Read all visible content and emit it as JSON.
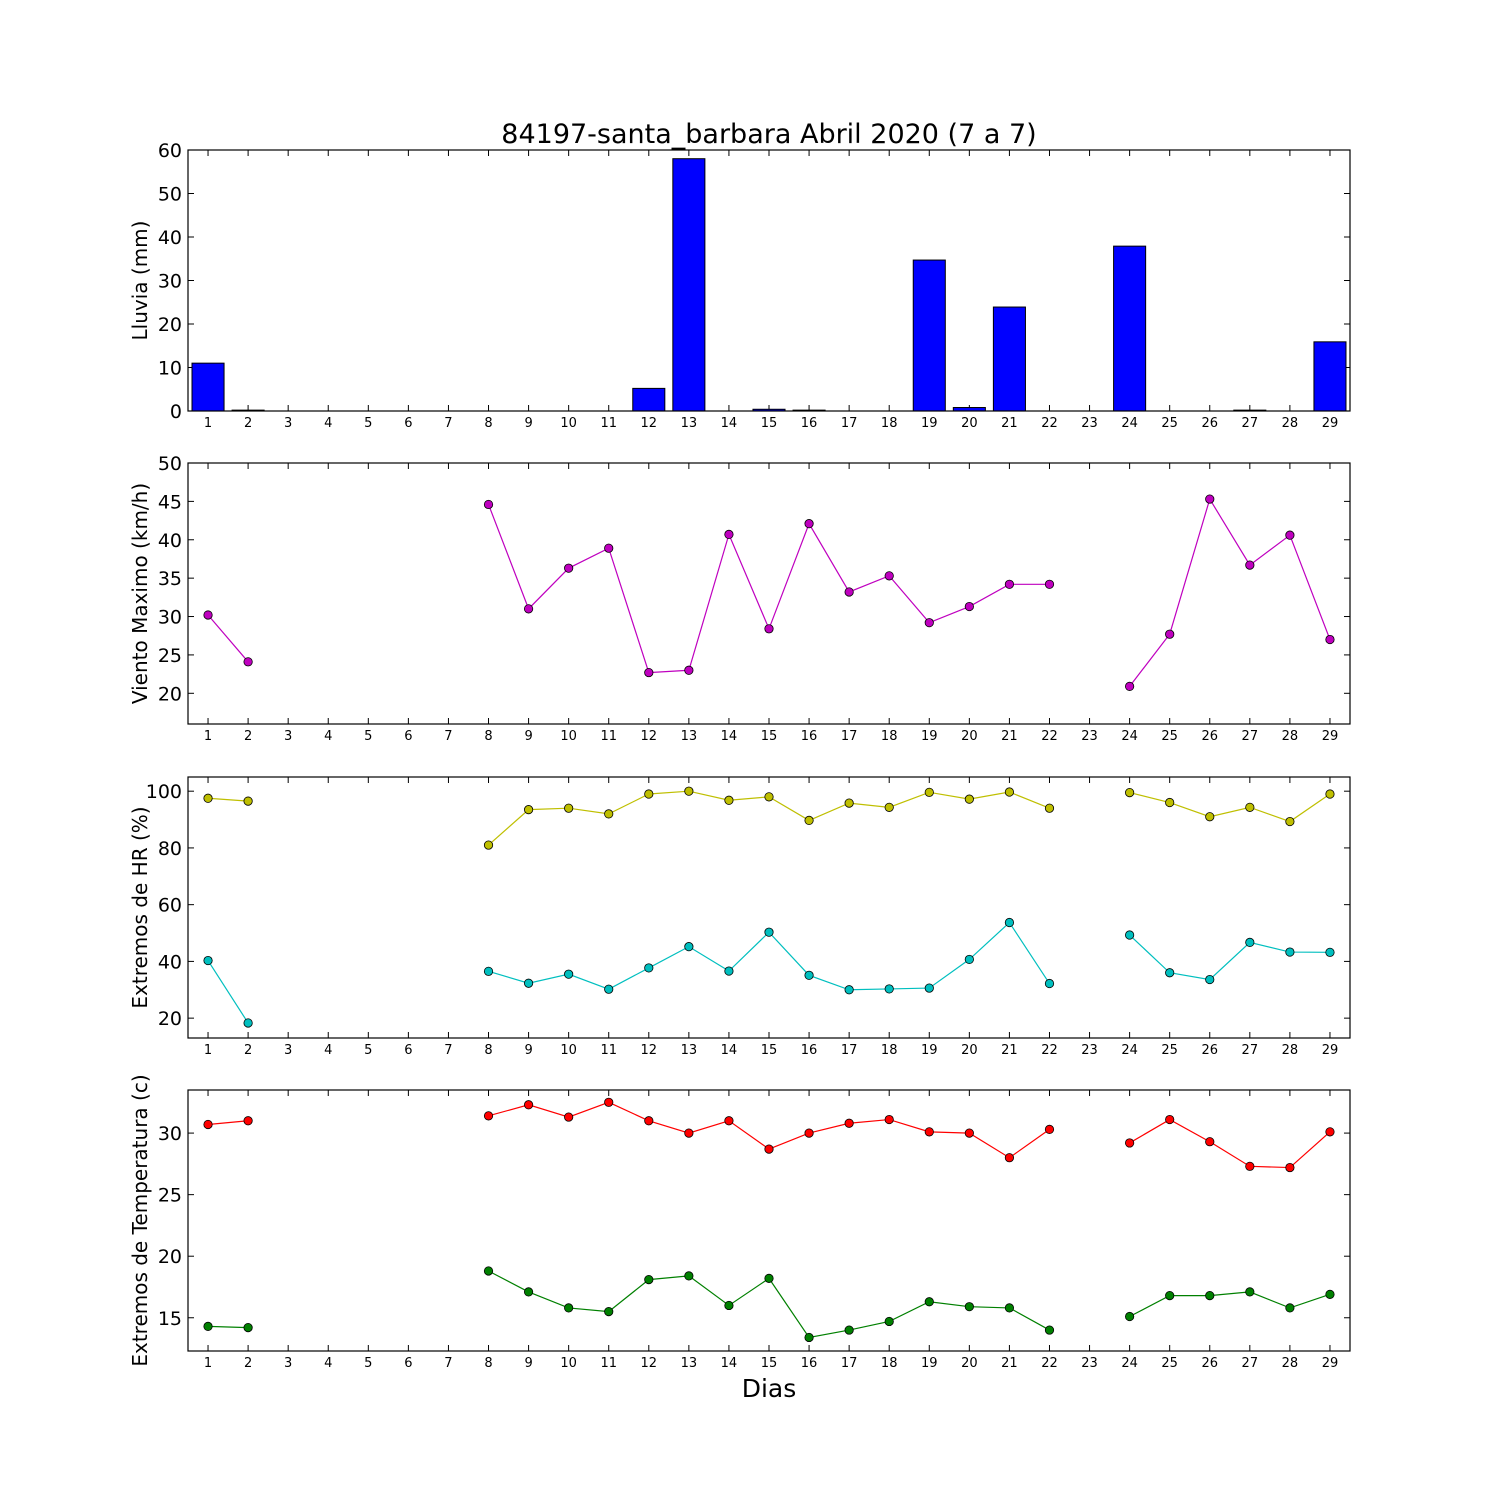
{
  "figure": {
    "title": "84197-santa_barbara Abril 2020  (7 a 7)",
    "xlabel": "Dias"
  },
  "chart_data": [
    {
      "type": "bar",
      "ylabel": "Lluvia (mm)",
      "x": [
        1,
        2,
        3,
        4,
        5,
        6,
        7,
        8,
        9,
        10,
        11,
        12,
        13,
        14,
        15,
        16,
        17,
        18,
        19,
        20,
        21,
        22,
        23,
        24,
        25,
        26,
        27,
        28,
        29
      ],
      "xlim": [
        0.5,
        29.5
      ],
      "ylim": [
        0,
        60
      ],
      "yticks": [
        0,
        10,
        20,
        30,
        40,
        50,
        60
      ],
      "bar_color": "#0000ff",
      "values": [
        11.0,
        0.2,
        0,
        0,
        0,
        0,
        0,
        0,
        0,
        0,
        0,
        5.2,
        58.0,
        0,
        0.4,
        0.2,
        0,
        0,
        34.7,
        0.8,
        23.9,
        0,
        0,
        37.9,
        0,
        0,
        0.2,
        0,
        15.9
      ]
    },
    {
      "type": "line",
      "ylabel": "Viento Maximo (km/h)",
      "x": [
        1,
        2,
        3,
        4,
        5,
        6,
        7,
        8,
        9,
        10,
        11,
        12,
        13,
        14,
        15,
        16,
        17,
        18,
        19,
        20,
        21,
        22,
        23,
        24,
        25,
        26,
        27,
        28,
        29
      ],
      "xlim": [
        0.5,
        29.5
      ],
      "ylim": [
        16,
        50
      ],
      "yticks": [
        20,
        25,
        30,
        35,
        40,
        45,
        50
      ],
      "series": [
        {
          "color": "#bf00bf",
          "values": [
            30.2,
            24.1,
            null,
            null,
            null,
            null,
            null,
            44.6,
            31.0,
            36.3,
            38.9,
            22.7,
            23.0,
            40.7,
            28.4,
            42.1,
            33.2,
            35.3,
            29.2,
            31.3,
            34.2,
            34.2,
            null,
            20.9,
            27.7,
            45.3,
            36.7,
            40.6,
            27.0
          ]
        }
      ]
    },
    {
      "type": "line",
      "ylabel": "Extremos de HR (%)",
      "x": [
        1,
        2,
        3,
        4,
        5,
        6,
        7,
        8,
        9,
        10,
        11,
        12,
        13,
        14,
        15,
        16,
        17,
        18,
        19,
        20,
        21,
        22,
        23,
        24,
        25,
        26,
        27,
        28,
        29
      ],
      "xlim": [
        0.5,
        29.5
      ],
      "ylim": [
        13,
        105
      ],
      "yticks": [
        20,
        40,
        60,
        80,
        100
      ],
      "series": [
        {
          "color": "#bfbf00",
          "values": [
            97.5,
            96.5,
            null,
            null,
            null,
            null,
            null,
            81.0,
            93.5,
            94.0,
            92.0,
            99.0,
            100.0,
            96.8,
            98.0,
            89.7,
            95.8,
            94.3,
            99.6,
            97.2,
            99.7,
            94.0,
            null,
            99.5,
            96.0,
            91.0,
            94.3,
            89.3,
            99.0
          ]
        },
        {
          "color": "#00bfbf",
          "values": [
            40.3,
            18.3,
            null,
            null,
            null,
            null,
            null,
            36.5,
            32.3,
            35.5,
            30.2,
            37.7,
            45.2,
            36.6,
            50.3,
            35.1,
            30.0,
            30.3,
            30.6,
            40.7,
            53.7,
            32.2,
            null,
            49.3,
            36.0,
            33.6,
            46.7,
            43.3,
            43.2
          ]
        }
      ]
    },
    {
      "type": "line",
      "ylabel": "Extremos de Temperatura (c)",
      "x": [
        1,
        2,
        3,
        4,
        5,
        6,
        7,
        8,
        9,
        10,
        11,
        12,
        13,
        14,
        15,
        16,
        17,
        18,
        19,
        20,
        21,
        22,
        23,
        24,
        25,
        26,
        27,
        28,
        29
      ],
      "xlim": [
        0.5,
        29.5
      ],
      "ylim": [
        12.3,
        33.5
      ],
      "yticks": [
        15,
        20,
        25,
        30
      ],
      "series": [
        {
          "color": "#ff0000",
          "values": [
            30.7,
            31.0,
            null,
            null,
            null,
            null,
            null,
            31.4,
            32.3,
            31.3,
            32.5,
            31.0,
            30.0,
            31.0,
            28.7,
            30.0,
            30.8,
            31.1,
            30.1,
            30.0,
            28.0,
            30.3,
            null,
            29.2,
            31.1,
            29.3,
            27.3,
            27.2,
            30.1
          ]
        },
        {
          "color": "#008000",
          "values": [
            14.3,
            14.2,
            null,
            null,
            null,
            null,
            null,
            18.8,
            17.1,
            15.8,
            15.5,
            18.1,
            18.4,
            16.0,
            18.2,
            13.4,
            14.0,
            14.7,
            16.3,
            15.9,
            15.8,
            14.0,
            null,
            15.1,
            16.8,
            16.8,
            17.1,
            15.8,
            16.9
          ]
        }
      ]
    }
  ]
}
